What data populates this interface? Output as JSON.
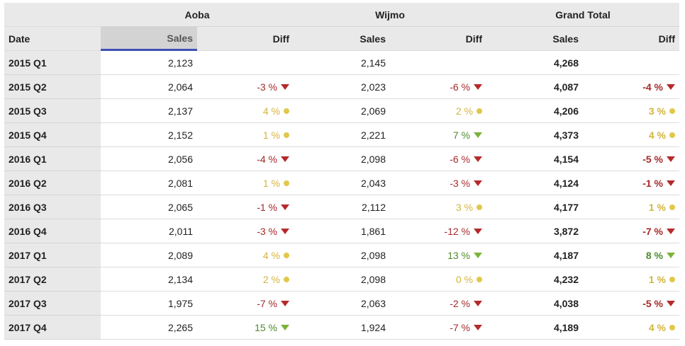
{
  "groups": [
    "Aoba",
    "Wijmo",
    "Grand Total"
  ],
  "columns": {
    "date": "Date",
    "aoba_sales": "Sales",
    "aoba_diff": "Diff",
    "wijmo_sales": "Sales",
    "wijmo_diff": "Diff",
    "total_sales": "Sales",
    "total_diff": "Diff"
  },
  "colors": {
    "negative": "#a52a2a",
    "neutral": "#d4b43a",
    "positive": "#4e8a2c",
    "sort_underline": "#3f51b5"
  },
  "rows": [
    {
      "date": "2015 Q1",
      "aoba_sales": "2,123",
      "aoba_diff": "",
      "aoba_trend": "none",
      "wijmo_sales": "2,145",
      "wijmo_diff": "",
      "wijmo_trend": "none",
      "total_sales": "4,268",
      "total_diff": "",
      "total_trend": "none"
    },
    {
      "date": "2015 Q2",
      "aoba_sales": "2,064",
      "aoba_diff": "-3 %",
      "aoba_trend": "neg",
      "wijmo_sales": "2,023",
      "wijmo_diff": "-6 %",
      "wijmo_trend": "neg",
      "total_sales": "4,087",
      "total_diff": "-4 %",
      "total_trend": "neg"
    },
    {
      "date": "2015 Q3",
      "aoba_sales": "2,137",
      "aoba_diff": "4 %",
      "aoba_trend": "neu",
      "wijmo_sales": "2,069",
      "wijmo_diff": "2 %",
      "wijmo_trend": "neu",
      "total_sales": "4,206",
      "total_diff": "3 %",
      "total_trend": "neu"
    },
    {
      "date": "2015 Q4",
      "aoba_sales": "2,152",
      "aoba_diff": "1 %",
      "aoba_trend": "neu",
      "wijmo_sales": "2,221",
      "wijmo_diff": "7 %",
      "wijmo_trend": "pos",
      "total_sales": "4,373",
      "total_diff": "4 %",
      "total_trend": "neu"
    },
    {
      "date": "2016 Q1",
      "aoba_sales": "2,056",
      "aoba_diff": "-4 %",
      "aoba_trend": "neg",
      "wijmo_sales": "2,098",
      "wijmo_diff": "-6 %",
      "wijmo_trend": "neg",
      "total_sales": "4,154",
      "total_diff": "-5 %",
      "total_trend": "neg"
    },
    {
      "date": "2016 Q2",
      "aoba_sales": "2,081",
      "aoba_diff": "1 %",
      "aoba_trend": "neu",
      "wijmo_sales": "2,043",
      "wijmo_diff": "-3 %",
      "wijmo_trend": "neg",
      "total_sales": "4,124",
      "total_diff": "-1 %",
      "total_trend": "neg"
    },
    {
      "date": "2016 Q3",
      "aoba_sales": "2,065",
      "aoba_diff": "-1 %",
      "aoba_trend": "neg",
      "wijmo_sales": "2,112",
      "wijmo_diff": "3 %",
      "wijmo_trend": "neu",
      "total_sales": "4,177",
      "total_diff": "1 %",
      "total_trend": "neu"
    },
    {
      "date": "2016 Q4",
      "aoba_sales": "2,011",
      "aoba_diff": "-3 %",
      "aoba_trend": "neg",
      "wijmo_sales": "1,861",
      "wijmo_diff": "-12 %",
      "wijmo_trend": "neg",
      "total_sales": "3,872",
      "total_diff": "-7 %",
      "total_trend": "neg"
    },
    {
      "date": "2017 Q1",
      "aoba_sales": "2,089",
      "aoba_diff": "4 %",
      "aoba_trend": "neu",
      "wijmo_sales": "2,098",
      "wijmo_diff": "13 %",
      "wijmo_trend": "pos",
      "total_sales": "4,187",
      "total_diff": "8 %",
      "total_trend": "pos"
    },
    {
      "date": "2017 Q2",
      "aoba_sales": "2,134",
      "aoba_diff": "2 %",
      "aoba_trend": "neu",
      "wijmo_sales": "2,098",
      "wijmo_diff": "0 %",
      "wijmo_trend": "neu",
      "total_sales": "4,232",
      "total_diff": "1 %",
      "total_trend": "neu"
    },
    {
      "date": "2017 Q3",
      "aoba_sales": "1,975",
      "aoba_diff": "-7 %",
      "aoba_trend": "neg",
      "wijmo_sales": "2,063",
      "wijmo_diff": "-2 %",
      "wijmo_trend": "neg",
      "total_sales": "4,038",
      "total_diff": "-5 %",
      "total_trend": "neg"
    },
    {
      "date": "2017 Q4",
      "aoba_sales": "2,265",
      "aoba_diff": "15 %",
      "aoba_trend": "pos",
      "wijmo_sales": "1,924",
      "wijmo_diff": "-7 %",
      "wijmo_trend": "neg",
      "total_sales": "4,189",
      "total_diff": "4 %",
      "total_trend": "neu"
    }
  ]
}
